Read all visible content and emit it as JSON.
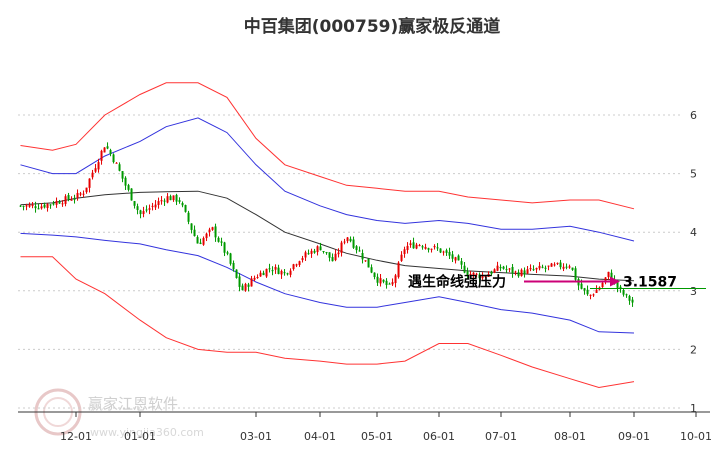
{
  "chart_data": {
    "type": "candlestick",
    "title": "中百集团(000759)赢家极反通道",
    "x_ticks": [
      "12-01",
      "01-01",
      "03-01",
      "04-01",
      "05-01",
      "06-01",
      "07-01",
      "08-01",
      "09-01",
      "10-01"
    ],
    "y_ticks": [
      "6",
      "5",
      "4",
      "3",
      "2",
      "1"
    ],
    "ylim": [
      1,
      6.5
    ],
    "grid": "horizontal dashed",
    "colors": {
      "up": "#e60000",
      "down": "#009900",
      "middle": "#333333",
      "upper_inner": "#3333dd",
      "lower_inner": "#3333dd",
      "outer": "#ff3333",
      "arrow": "#cc0077",
      "level": "#009900"
    },
    "annotation": {
      "text": "遇生命线强压力",
      "value_label": "3.1587",
      "value": 3.1587
    },
    "watermark": {
      "text": "赢家江恩软件",
      "url": "www.yingjia360.com"
    },
    "bands": {
      "dates": [
        "11-05",
        "11-20",
        "12-01",
        "12-15",
        "01-01",
        "01-15",
        "02-01",
        "02-15",
        "03-01",
        "03-15",
        "04-01",
        "04-15",
        "05-01",
        "05-15",
        "06-01",
        "06-15",
        "07-01",
        "07-15",
        "08-01",
        "08-15",
        "09-01"
      ],
      "middle": [
        4.47,
        4.5,
        4.58,
        4.64,
        4.68,
        4.69,
        4.7,
        4.58,
        4.3,
        4.0,
        3.8,
        3.64,
        3.52,
        3.43,
        3.38,
        3.34,
        3.31,
        3.28,
        3.25,
        3.2,
        3.17
      ],
      "upper_inner": [
        5.15,
        5.0,
        5.0,
        5.3,
        5.55,
        5.8,
        5.95,
        5.7,
        5.15,
        4.7,
        4.45,
        4.3,
        4.2,
        4.15,
        4.2,
        4.15,
        4.05,
        4.05,
        4.1,
        4.0,
        3.85
      ],
      "lower_inner": [
        3.98,
        3.95,
        3.92,
        3.86,
        3.8,
        3.7,
        3.6,
        3.4,
        3.15,
        2.95,
        2.8,
        2.72,
        2.72,
        2.8,
        2.9,
        2.8,
        2.68,
        2.62,
        2.5,
        2.3,
        2.28
      ],
      "upper_outer": [
        5.48,
        5.4,
        5.5,
        6.0,
        6.35,
        6.55,
        6.55,
        6.3,
        5.6,
        5.15,
        4.95,
        4.8,
        4.75,
        4.7,
        4.7,
        4.6,
        4.55,
        4.5,
        4.55,
        4.55,
        4.4
      ],
      "lower_outer": [
        3.58,
        3.58,
        3.2,
        2.95,
        2.5,
        2.2,
        2.0,
        1.95,
        1.95,
        1.85,
        1.8,
        1.75,
        1.75,
        1.8,
        2.1,
        2.1,
        1.9,
        1.7,
        1.5,
        1.35,
        1.45
      ]
    },
    "price": {
      "dates": [
        "11-05",
        "11-15",
        "11-25",
        "12-01",
        "12-05",
        "12-10",
        "12-15",
        "12-20",
        "12-25",
        "01-01",
        "01-08",
        "01-15",
        "01-22",
        "02-01",
        "02-08",
        "02-15",
        "02-22",
        "03-01",
        "03-08",
        "03-15",
        "03-22",
        "04-01",
        "04-08",
        "04-15",
        "04-22",
        "05-01",
        "05-08",
        "05-15",
        "05-22",
        "06-01",
        "06-08",
        "06-15",
        "06-22",
        "07-01",
        "07-08",
        "07-15",
        "07-22",
        "08-01",
        "08-05",
        "08-10",
        "08-15",
        "08-20",
        "08-25",
        "09-01"
      ],
      "close": [
        4.45,
        4.45,
        4.55,
        4.6,
        4.7,
        5.1,
        5.5,
        5.2,
        4.8,
        4.3,
        4.45,
        4.6,
        4.55,
        3.8,
        4.05,
        3.6,
        3.0,
        3.25,
        3.4,
        3.3,
        3.55,
        3.75,
        3.5,
        3.95,
        3.65,
        3.2,
        3.05,
        3.75,
        3.8,
        3.7,
        3.55,
        3.3,
        3.25,
        3.4,
        3.3,
        3.35,
        3.4,
        3.45,
        3.1,
        2.9,
        3.05,
        3.3,
        3.0,
        2.78
      ]
    }
  }
}
